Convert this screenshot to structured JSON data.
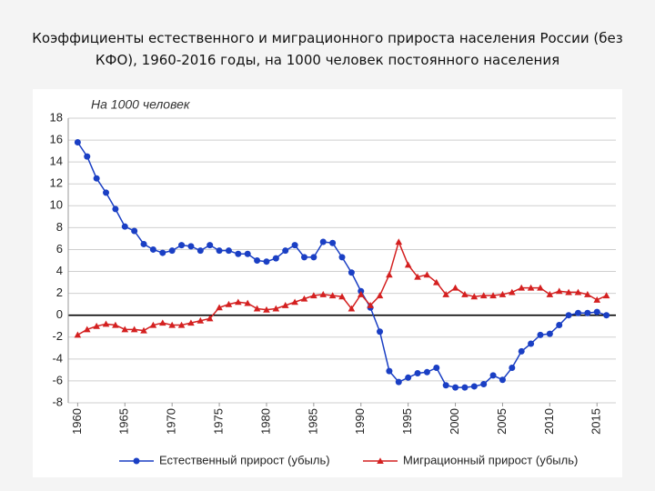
{
  "chart_data": {
    "type": "line",
    "title": "Коэффициенты естественного и миграционного прироста населения России (без КФО), 1960-2016 годы, на 1000 человек постоянного населения",
    "annotation": "На 1000 человек",
    "x": [
      1960,
      1961,
      1962,
      1963,
      1964,
      1965,
      1966,
      1967,
      1968,
      1969,
      1970,
      1971,
      1972,
      1973,
      1974,
      1975,
      1976,
      1977,
      1978,
      1979,
      1980,
      1981,
      1982,
      1983,
      1984,
      1985,
      1986,
      1987,
      1988,
      1989,
      1990,
      1991,
      1992,
      1993,
      1994,
      1995,
      1996,
      1997,
      1998,
      1999,
      2000,
      2001,
      2002,
      2003,
      2004,
      2005,
      2006,
      2007,
      2008,
      2009,
      2010,
      2011,
      2012,
      2013,
      2014,
      2015,
      2016
    ],
    "series": [
      {
        "name": "Естественный прирост (убыль)",
        "color": "#1a3fc4",
        "marker": "circle",
        "values": [
          15.8,
          14.5,
          12.5,
          11.2,
          9.7,
          8.1,
          7.7,
          6.5,
          6.0,
          5.7,
          5.9,
          6.4,
          6.3,
          5.9,
          6.4,
          5.9,
          5.9,
          5.6,
          5.6,
          5.0,
          4.9,
          5.2,
          5.9,
          6.4,
          5.3,
          5.3,
          6.7,
          6.6,
          5.3,
          3.9,
          2.2,
          0.7,
          -1.5,
          -5.1,
          -6.1,
          -5.7,
          -5.3,
          -5.2,
          -4.8,
          -6.4,
          -6.6,
          -6.6,
          -6.5,
          -6.3,
          -5.5,
          -5.9,
          -4.8,
          -3.3,
          -2.6,
          -1.8,
          -1.7,
          -0.9,
          0.0,
          0.2,
          0.2,
          0.3,
          0.0
        ]
      },
      {
        "name": "Миграционный прирост (убыль)",
        "color": "#d42020",
        "marker": "triangle",
        "values": [
          -1.8,
          -1.3,
          -1.0,
          -0.8,
          -0.9,
          -1.3,
          -1.3,
          -1.4,
          -0.9,
          -0.7,
          -0.9,
          -0.9,
          -0.7,
          -0.5,
          -0.3,
          0.7,
          1.0,
          1.2,
          1.1,
          0.6,
          0.5,
          0.6,
          0.9,
          1.2,
          1.5,
          1.8,
          1.9,
          1.8,
          1.7,
          0.6,
          1.9,
          0.9,
          1.8,
          3.7,
          6.7,
          4.6,
          3.5,
          3.7,
          3.0,
          1.9,
          2.5,
          1.9,
          1.7,
          1.8,
          1.8,
          1.9,
          2.1,
          2.5,
          2.5,
          2.5,
          1.9,
          2.2,
          2.1,
          2.1,
          1.9,
          1.4,
          1.8
        ]
      }
    ],
    "xlim": [
      1959,
      2017
    ],
    "xticks": [
      1960,
      1965,
      1970,
      1975,
      1980,
      1985,
      1990,
      1995,
      2000,
      2005,
      2010,
      2015
    ],
    "ylim": [
      -8,
      18
    ],
    "yticks": [
      -8,
      -6,
      -4,
      -2,
      0,
      2,
      4,
      6,
      8,
      10,
      12,
      14,
      16,
      18
    ],
    "grid": true,
    "legend": "bottom"
  }
}
